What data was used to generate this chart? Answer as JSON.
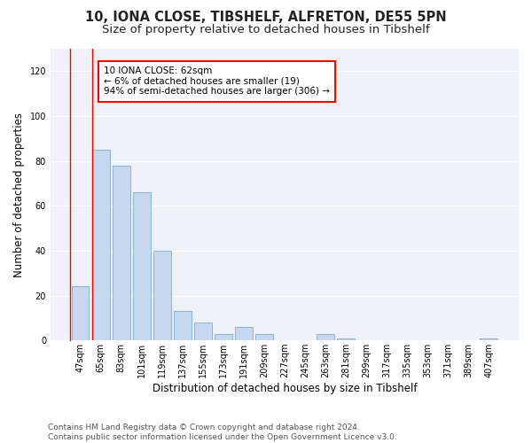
{
  "title": "10, IONA CLOSE, TIBSHELF, ALFRETON, DE55 5PN",
  "subtitle": "Size of property relative to detached houses in Tibshelf",
  "xlabel": "Distribution of detached houses by size in Tibshelf",
  "ylabel": "Number of detached properties",
  "bar_labels": [
    "47sqm",
    "65sqm",
    "83sqm",
    "101sqm",
    "119sqm",
    "137sqm",
    "155sqm",
    "173sqm",
    "191sqm",
    "209sqm",
    "227sqm",
    "245sqm",
    "263sqm",
    "281sqm",
    "299sqm",
    "317sqm",
    "335sqm",
    "353sqm",
    "371sqm",
    "389sqm",
    "407sqm"
  ],
  "bar_values": [
    24,
    85,
    78,
    66,
    40,
    13,
    8,
    3,
    6,
    3,
    0,
    0,
    3,
    1,
    0,
    0,
    0,
    0,
    0,
    0,
    1
  ],
  "bar_color": "#c5d8f0",
  "bar_edge_color": "#7aadd4",
  "annotation_text": "10 IONA CLOSE: 62sqm\n← 6% of detached houses are smaller (19)\n94% of semi-detached houses are larger (306) →",
  "vline_x_index": 0,
  "ylim": [
    0,
    130
  ],
  "yticks": [
    0,
    20,
    40,
    60,
    80,
    100,
    120
  ],
  "footer": "Contains HM Land Registry data © Crown copyright and database right 2024.\nContains public sector information licensed under the Open Government Licence v3.0.",
  "background_color": "#ffffff",
  "plot_bg_color": "#eef2f8",
  "grid_color": "#ffffff",
  "title_fontsize": 10.5,
  "subtitle_fontsize": 9.5,
  "tick_fontsize": 7,
  "ylabel_fontsize": 8.5,
  "xlabel_fontsize": 8.5,
  "footer_fontsize": 6.5,
  "annotation_fontsize": 7.5
}
